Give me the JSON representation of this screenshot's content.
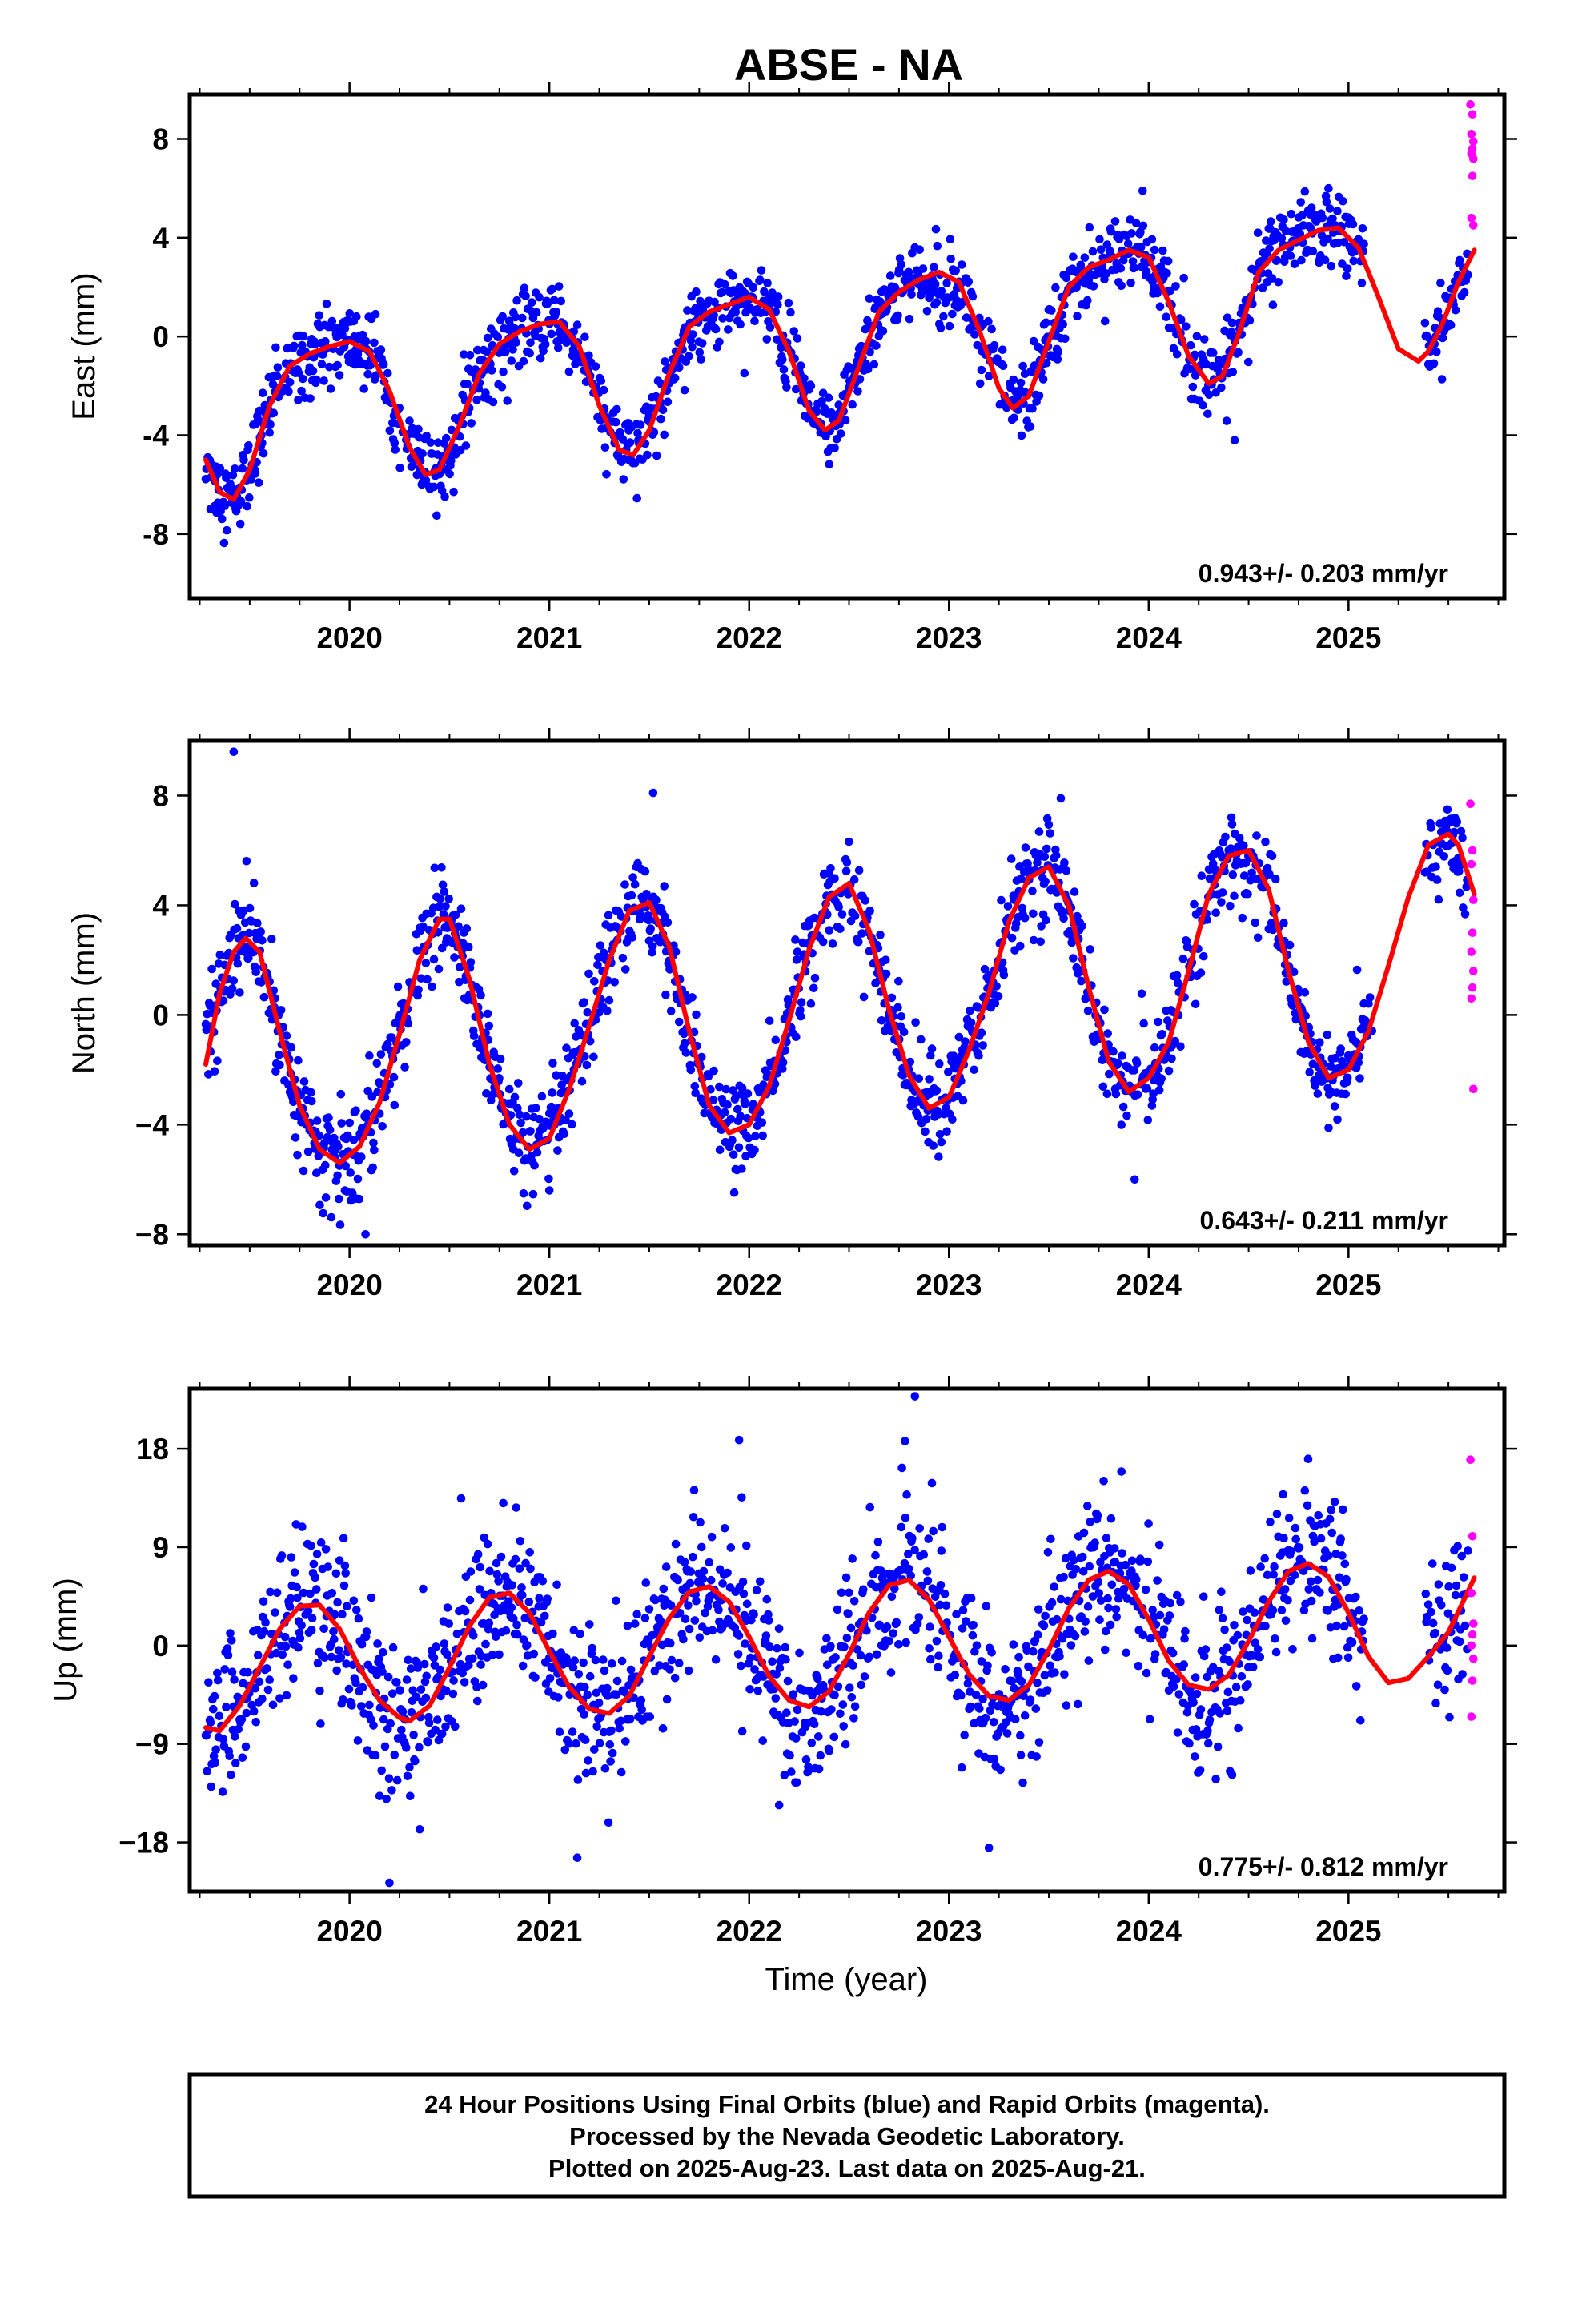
{
  "title": "ABSE - NA",
  "xlabel": "Time (year)",
  "caption_lines": [
    "24 Hour Positions Using Final Orbits (blue) and Rapid Orbits (magenta).",
    "Processed by the Nevada Geodetic Laboratory.",
    "Plotted on 2025-Aug-23. Last data on 2025-Aug-21."
  ],
  "colors": {
    "final": "#0000ff",
    "rapid": "#ff00ff",
    "fit": "#ff0000"
  },
  "chart_data": [
    {
      "type": "scatter",
      "ylabel": "East (mm)",
      "rate": "0.943+/- 0.203 mm/yr",
      "xlim": [
        2019.2,
        2025.78
      ],
      "ylim": [
        -10.6,
        9.8
      ],
      "xticks": [
        2020,
        2021,
        2022,
        2023,
        2024,
        2025
      ],
      "yticks": [
        -8,
        -4,
        0,
        4,
        8
      ],
      "ytick_labels": [
        "-8",
        "-4",
        "0",
        "4",
        "8"
      ],
      "fit": {
        "x": [
          2019.28,
          2019.35,
          2019.42,
          2019.5,
          2019.6,
          2019.7,
          2019.8,
          2019.9,
          2020.0,
          2020.1,
          2020.2,
          2020.3,
          2020.38,
          2020.45,
          2020.55,
          2020.65,
          2020.75,
          2020.85,
          2020.95,
          2021.05,
          2021.15,
          2021.25,
          2021.35,
          2021.42,
          2021.5,
          2021.6,
          2021.7,
          2021.8,
          2021.9,
          2022.0,
          2022.1,
          2022.2,
          2022.3,
          2022.38,
          2022.45,
          2022.55,
          2022.65,
          2022.75,
          2022.85,
          2022.95,
          2023.05,
          2023.15,
          2023.25,
          2023.32,
          2023.4,
          2023.5,
          2023.6,
          2023.7,
          2023.8,
          2023.9,
          2024.0,
          2024.1,
          2024.2,
          2024.3,
          2024.37,
          2024.45,
          2024.55,
          2024.65,
          2024.75,
          2024.85,
          2024.95,
          2025.05,
          2025.15,
          2025.25,
          2025.35,
          2025.4,
          2025.47,
          2025.55,
          2025.63
        ],
        "y": [
          -5.0,
          -6.3,
          -6.6,
          -5.4,
          -2.8,
          -1.2,
          -0.7,
          -0.4,
          -0.2,
          -0.6,
          -2.2,
          -4.5,
          -5.6,
          -5.4,
          -3.6,
          -1.5,
          -0.3,
          0.2,
          0.5,
          0.6,
          -0.4,
          -2.8,
          -4.6,
          -4.8,
          -3.8,
          -1.5,
          0.4,
          1.0,
          1.3,
          1.6,
          1.1,
          -0.6,
          -3.0,
          -3.8,
          -3.4,
          -1.2,
          1.0,
          1.8,
          2.3,
          2.6,
          2.2,
          0.3,
          -2.1,
          -2.9,
          -2.4,
          -0.2,
          2.0,
          2.8,
          3.1,
          3.5,
          3.2,
          1.4,
          -0.8,
          -1.9,
          -1.6,
          0.1,
          2.6,
          3.5,
          3.9,
          4.3,
          4.4,
          3.6,
          1.6,
          -0.5,
          -1.0,
          -0.6,
          0.5,
          2.2,
          3.5
        ]
      },
      "rapid": {
        "x": [
          2025.61,
          2025.62,
          2025.615,
          2025.625,
          2025.62,
          2025.615,
          2025.625,
          2025.62,
          2025.615,
          2025.625
        ],
        "y": [
          9.4,
          9.0,
          8.2,
          7.9,
          7.6,
          7.4,
          7.2,
          6.5,
          4.8,
          4.5
        ]
      },
      "noise_sd": 0.75,
      "outliers": [
        [
          2023.97,
          5.9
        ],
        [
          2024.9,
          6.0
        ],
        [
          2024.43,
          -4.2
        ]
      ]
    },
    {
      "type": "scatter",
      "ylabel": "North (mm)",
      "rate": "0.643+/- 0.211 mm/yr",
      "xlim": [
        2019.2,
        2025.78
      ],
      "ylim": [
        -8.4,
        10.0
      ],
      "xticks": [
        2020,
        2021,
        2022,
        2023,
        2024,
        2025
      ],
      "yticks": [
        -8,
        -4,
        0,
        4,
        8
      ],
      "ytick_labels": [
        "−8",
        "−4",
        "0",
        "4",
        "8"
      ],
      "fit": {
        "x": [
          2019.28,
          2019.35,
          2019.42,
          2019.48,
          2019.55,
          2019.65,
          2019.75,
          2019.85,
          2019.95,
          2020.05,
          2020.15,
          2020.25,
          2020.35,
          2020.45,
          2020.5,
          2020.6,
          2020.7,
          2020.8,
          2020.9,
          2021.0,
          2021.1,
          2021.2,
          2021.3,
          2021.4,
          2021.5,
          2021.6,
          2021.7,
          2021.8,
          2021.9,
          2022.0,
          2022.1,
          2022.2,
          2022.3,
          2022.4,
          2022.5,
          2022.6,
          2022.7,
          2022.8,
          2022.9,
          2023.0,
          2023.1,
          2023.2,
          2023.3,
          2023.4,
          2023.5,
          2023.6,
          2023.7,
          2023.8,
          2023.9,
          2024.0,
          2024.1,
          2024.2,
          2024.3,
          2024.4,
          2024.5,
          2024.6,
          2024.7,
          2024.8,
          2024.9,
          2025.0,
          2025.1,
          2025.2,
          2025.3,
          2025.4,
          2025.5,
          2025.55,
          2025.63
        ],
        "y": [
          -1.8,
          0.8,
          2.3,
          2.8,
          2.3,
          -0.6,
          -3.3,
          -4.9,
          -5.4,
          -4.8,
          -3.2,
          -0.7,
          2.0,
          3.5,
          3.5,
          1.3,
          -1.8,
          -4.0,
          -4.9,
          -4.5,
          -2.7,
          -0.4,
          2.0,
          3.8,
          4.1,
          2.5,
          -0.6,
          -3.3,
          -4.3,
          -4.0,
          -2.6,
          -0.2,
          2.4,
          4.3,
          4.8,
          3.1,
          0.2,
          -2.2,
          -3.4,
          -3.0,
          -1.3,
          0.8,
          3.4,
          5.0,
          5.4,
          4.0,
          1.0,
          -1.7,
          -2.8,
          -2.3,
          -1.0,
          1.6,
          4.4,
          5.8,
          6.0,
          4.6,
          1.6,
          -1.0,
          -2.3,
          -2.0,
          -0.6,
          1.8,
          4.3,
          6.2,
          6.6,
          6.2,
          4.4
        ]
      },
      "rapid": {
        "x": [
          2025.61,
          2025.62,
          2025.615,
          2025.625,
          2025.62,
          2025.615,
          2025.625,
          2025.62,
          2025.615,
          2025.625
        ],
        "y": [
          7.7,
          6.0,
          5.5,
          4.2,
          3.0,
          2.3,
          1.6,
          1.0,
          0.6,
          -2.7
        ]
      },
      "noise_sd": 0.85,
      "outliers": [
        [
          2019.42,
          9.6
        ],
        [
          2021.52,
          8.1
        ],
        [
          2023.56,
          7.9
        ],
        [
          2020.08,
          -8.0
        ],
        [
          2021.0,
          -6.4
        ],
        [
          2023.93,
          -6.0
        ]
      ]
    },
    {
      "type": "scatter",
      "ylabel": "Up (mm)",
      "rate": "0.775+/- 0.812 mm/yr",
      "xlim": [
        2019.2,
        2025.78
      ],
      "ylim": [
        -22.5,
        23.5
      ],
      "xticks": [
        2020,
        2021,
        2022,
        2023,
        2024,
        2025
      ],
      "yticks": [
        -18,
        -9,
        0,
        9,
        18
      ],
      "ytick_labels": [
        "−18",
        "−9",
        "0",
        "9",
        "18"
      ],
      "fit": {
        "x": [
          2019.28,
          2019.35,
          2019.45,
          2019.55,
          2019.65,
          2019.75,
          2019.85,
          2019.95,
          2020.05,
          2020.15,
          2020.25,
          2020.3,
          2020.4,
          2020.5,
          2020.6,
          2020.7,
          2020.8,
          2020.9,
          2021.0,
          2021.1,
          2021.2,
          2021.3,
          2021.4,
          2021.5,
          2021.6,
          2021.7,
          2021.8,
          2021.9,
          2022.0,
          2022.1,
          2022.2,
          2022.3,
          2022.4,
          2022.5,
          2022.6,
          2022.7,
          2022.8,
          2022.9,
          2023.0,
          2023.1,
          2023.2,
          2023.3,
          2023.4,
          2023.5,
          2023.6,
          2023.7,
          2023.8,
          2023.9,
          2024.0,
          2024.1,
          2024.2,
          2024.3,
          2024.4,
          2024.5,
          2024.6,
          2024.7,
          2024.8,
          2024.9,
          2025.0,
          2025.1,
          2025.2,
          2025.3,
          2025.4,
          2025.5,
          2025.63
        ],
        "y": [
          -7.5,
          -7.8,
          -5.5,
          -2.0,
          1.5,
          3.6,
          3.7,
          1.5,
          -2.0,
          -5.0,
          -6.6,
          -6.9,
          -5.5,
          -2.0,
          1.8,
          4.4,
          4.8,
          3.0,
          -0.5,
          -3.8,
          -5.8,
          -6.2,
          -4.6,
          -1.0,
          2.5,
          4.9,
          5.4,
          4.0,
          0.8,
          -2.8,
          -5.0,
          -5.6,
          -4.2,
          -0.8,
          3.0,
          5.5,
          6.0,
          4.2,
          0.8,
          -2.6,
          -4.6,
          -5.0,
          -3.6,
          -0.4,
          3.4,
          6.0,
          6.8,
          5.6,
          2.4,
          -1.4,
          -3.6,
          -4.0,
          -2.7,
          0.4,
          4.0,
          6.8,
          7.5,
          6.3,
          3.0,
          -1.0,
          -3.4,
          -3.0,
          -1.0,
          1.2,
          6.2
        ]
      },
      "rapid": {
        "x": [
          2025.61,
          2025.62,
          2025.615,
          2025.625,
          2025.62,
          2025.615,
          2025.625,
          2025.62,
          2025.615
        ],
        "y": [
          17.0,
          10.0,
          4.8,
          2.0,
          1.0,
          0.0,
          -1.2,
          -3.2,
          -6.5
        ]
      },
      "noise_sd": 3.5,
      "outliers": [
        [
          2022.83,
          22.8
        ],
        [
          2021.95,
          18.8
        ],
        [
          2022.78,
          18.7
        ],
        [
          2020.2,
          -21.7
        ],
        [
          2021.14,
          -19.4
        ],
        [
          2023.2,
          -18.5
        ],
        [
          2022.15,
          -14.6
        ]
      ]
    }
  ]
}
